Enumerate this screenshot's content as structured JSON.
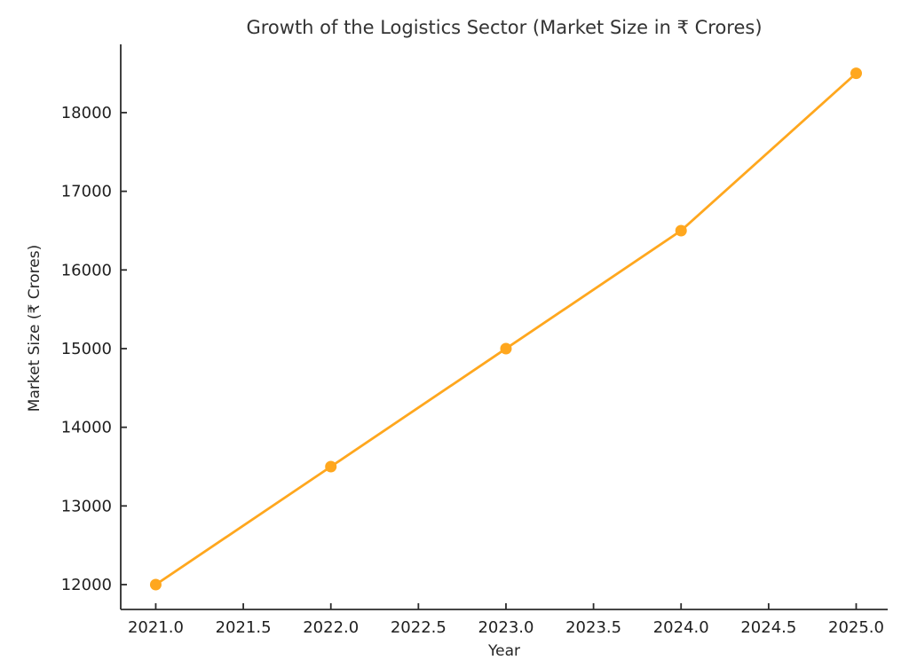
{
  "chart_data": {
    "type": "line",
    "title": "Growth of the Logistics Sector (Market Size in ₹ Crores)",
    "xlabel": "Year",
    "ylabel": "Market Size (₹ Crores)",
    "x": [
      2021,
      2022,
      2023,
      2024,
      2025
    ],
    "values": [
      12000,
      13500,
      15000,
      16500,
      18500
    ],
    "series_name": "Market Size",
    "xlim": [
      2020.8,
      2025.18
    ],
    "ylim": [
      11684,
      18868
    ],
    "xtick_values": [
      2021.0,
      2021.5,
      2022.0,
      2022.5,
      2023.0,
      2023.5,
      2024.0,
      2024.5,
      2025.0
    ],
    "xtick_labels": [
      "2021.0",
      "2021.5",
      "2022.0",
      "2022.5",
      "2023.0",
      "2023.5",
      "2024.0",
      "2024.5",
      "2025.0"
    ],
    "ytick_values": [
      12000,
      13000,
      14000,
      15000,
      16000,
      17000,
      18000
    ],
    "ytick_labels": [
      "12000",
      "13000",
      "14000",
      "15000",
      "16000",
      "17000",
      "18000"
    ],
    "grid": false,
    "legend": false,
    "colors": {
      "line": "#FFA71E",
      "marker": "#FFA71E",
      "spine": "#2b2b2b",
      "text": "#262626",
      "title": "#333333",
      "background": "#ffffff"
    }
  }
}
